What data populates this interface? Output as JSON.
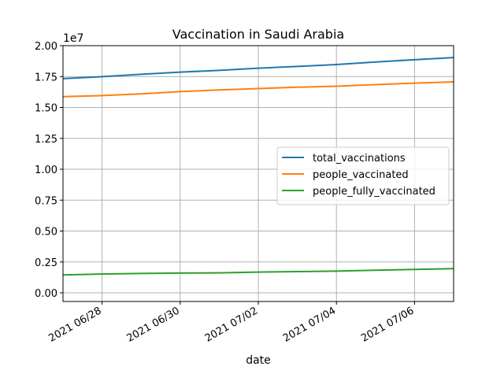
{
  "chart_data": {
    "type": "line",
    "title": "Vaccination in Saudi Arabia",
    "xlabel": "date",
    "ylabel": "",
    "y_scale_label": "1e7",
    "xlim": [
      "2021-06-27",
      "2021-07-07"
    ],
    "ylim": [
      -0.07,
      2.0
    ],
    "grid": true,
    "legend_placement": "center-right",
    "x": [
      "2021-06-27",
      "2021-06-28",
      "2021-06-29",
      "2021-06-30",
      "2021-07-01",
      "2021-07-02",
      "2021-07-03",
      "2021-07-04",
      "2021-07-05",
      "2021-07-06",
      "2021-07-07"
    ],
    "x_tick_values": [
      "2021-06-28",
      "2021-06-30",
      "2021-07-02",
      "2021-07-04",
      "2021-07-06"
    ],
    "x_tick_labels": [
      "2021 06/28",
      "2021 06/30",
      "2021 07/02",
      "2021 07/04",
      "2021 07/06"
    ],
    "y_ticks": [
      0.0,
      0.25,
      0.5,
      0.75,
      1.0,
      1.25,
      1.5,
      1.75,
      2.0
    ],
    "y_tick_labels": [
      "0.00",
      "0.25",
      "0.50",
      "0.75",
      "1.00",
      "1.25",
      "1.50",
      "1.75",
      "2.00"
    ],
    "series": [
      {
        "name": "total_vaccinations",
        "color": "#1f77b4",
        "values": [
          1.733,
          1.749,
          1.768,
          1.786,
          1.8,
          1.818,
          1.832,
          1.847,
          1.868,
          1.886,
          1.904
        ]
      },
      {
        "name": "people_vaccinated",
        "color": "#ff7f0e",
        "values": [
          1.588,
          1.596,
          1.61,
          1.628,
          1.642,
          1.653,
          1.664,
          1.672,
          1.685,
          1.697,
          1.707
        ]
      },
      {
        "name": "people_fully_vaccinated",
        "color": "#2ca02c",
        "values": [
          0.145,
          0.152,
          0.157,
          0.16,
          0.162,
          0.168,
          0.172,
          0.176,
          0.183,
          0.19,
          0.196
        ]
      }
    ]
  }
}
